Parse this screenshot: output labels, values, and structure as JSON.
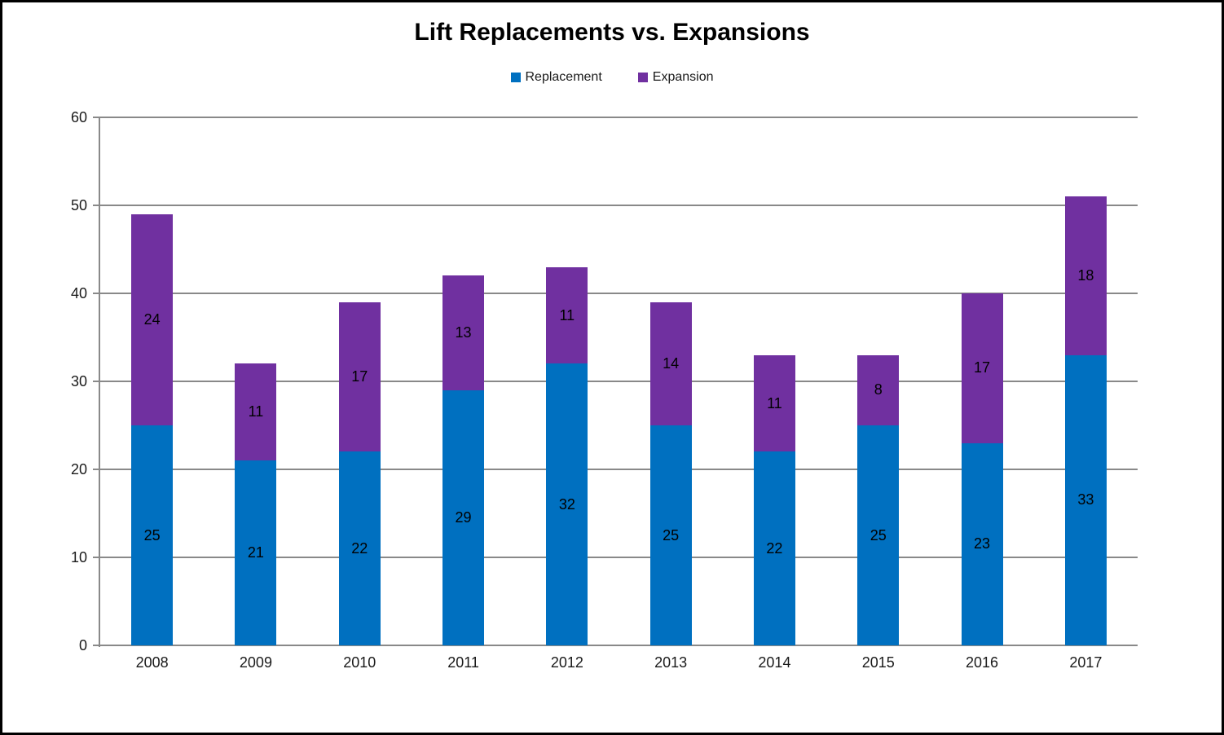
{
  "chart_data": {
    "type": "bar",
    "stacked": true,
    "title": "Lift Replacements vs. Expansions",
    "categories": [
      "2008",
      "2009",
      "2010",
      "2011",
      "2012",
      "2013",
      "2014",
      "2015",
      "2016",
      "2017"
    ],
    "series": [
      {
        "name": "Replacement",
        "color": "#0070C0",
        "values": [
          25,
          21,
          22,
          29,
          32,
          25,
          22,
          25,
          23,
          33
        ]
      },
      {
        "name": "Expansion",
        "color": "#7030A0",
        "values": [
          24,
          11,
          17,
          13,
          11,
          14,
          11,
          8,
          17,
          18
        ]
      }
    ],
    "totals": [
      49,
      32,
      39,
      42,
      43,
      39,
      33,
      33,
      40,
      51
    ],
    "xlabel": "",
    "ylabel": "",
    "ylim": [
      0,
      60
    ],
    "yticks": [
      0,
      10,
      20,
      30,
      40,
      50,
      60
    ],
    "grid": "horizontal",
    "gridline_color": "#898989",
    "axis_text_color": "#1a1a1a",
    "data_label_color": "#000000",
    "legend_position": "top",
    "legend": [
      {
        "label": "Replacement",
        "color": "#0070C0"
      },
      {
        "label": "Expansion",
        "color": "#7030A0"
      }
    ]
  }
}
